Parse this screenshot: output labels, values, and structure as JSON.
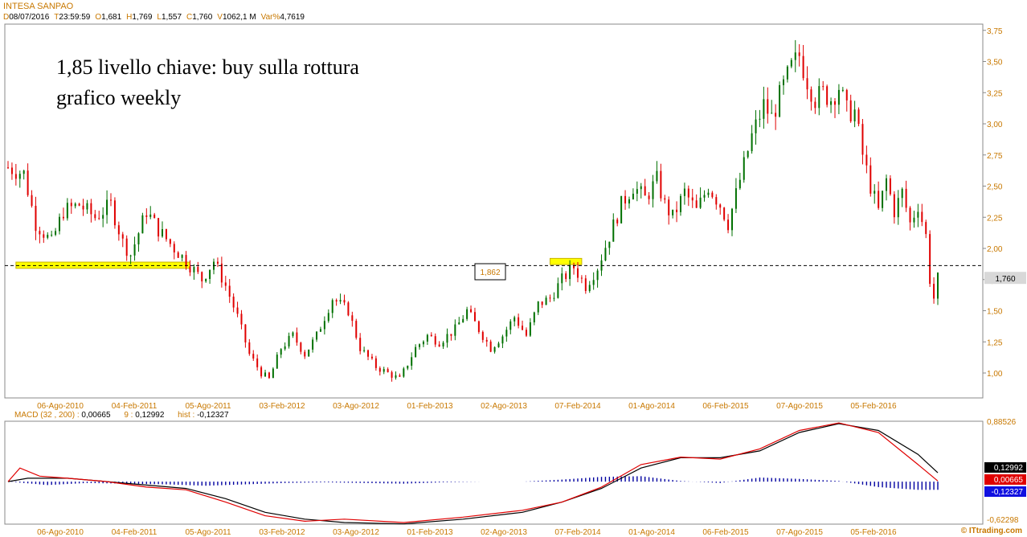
{
  "header": {
    "title": "INTESA SANPAO",
    "fields": [
      {
        "k": "D",
        "v": "08/07/2016"
      },
      {
        "k": "T",
        "v": "23:59:59"
      },
      {
        "k": "O",
        "v": "1,681"
      },
      {
        "k": "H",
        "v": "1,769"
      },
      {
        "k": "L",
        "v": "1,557"
      },
      {
        "k": "C",
        "v": "1,760"
      },
      {
        "k": "V",
        "v": "1062,1 M"
      },
      {
        "k": "Var%",
        "v": "4,7619"
      }
    ]
  },
  "annotations": {
    "line1": "1,85 livello chiave: buy sulla rottura",
    "line2": "grafico weekly",
    "box_label": "1,862",
    "last_price_label": "1,760"
  },
  "macd_header": {
    "name": "MACD",
    "params": "(32 , 200)",
    "macd_value": "0,00665",
    "signal_label": "9",
    "signal_value": "0,12992",
    "hist_label": "hist",
    "hist_value": "-0,12327"
  },
  "macd_labels": {
    "top": "0,88526",
    "bottom": "-0,62298",
    "signal_badge": "0,12992",
    "macd_badge": "0,00665",
    "hist_badge": "-0,12327"
  },
  "footer": "© ITtrading.com",
  "colors": {
    "up": "#007000",
    "down": "#e00000",
    "axis": "#c87800",
    "highlight": "#ffff00",
    "macd_line": "#e00000",
    "signal_line": "#000000",
    "hist": "#0000a0"
  },
  "chart_data": [
    {
      "type": "candlestick",
      "title": "",
      "y_ticks": [
        "3,75",
        "3,50",
        "3,25",
        "3,00",
        "2,75",
        "2,50",
        "2,25",
        "2,00",
        "1,75",
        "1,50",
        "1,25",
        "1,00"
      ],
      "y_tick_values": [
        3.75,
        3.5,
        3.25,
        3.0,
        2.75,
        2.5,
        2.25,
        2.0,
        1.75,
        1.5,
        1.25,
        1.0
      ],
      "ylim": [
        0.8,
        3.8
      ],
      "x_ticks": [
        "06-Ago-2010",
        "04-Feb-2011",
        "05-Ago-2011",
        "03-Feb-2012",
        "03-Ago-2012",
        "01-Feb-2013",
        "02-Ago-2013",
        "07-Feb-2014",
        "01-Ago-2014",
        "06-Feb-2015",
        "07-Ago-2015",
        "05-Feb-2016"
      ],
      "horizontal_line": 1.862,
      "last_close": 1.76,
      "close_path": [
        [
          0,
          2.65
        ],
        [
          4,
          2.6
        ],
        [
          7,
          2.2
        ],
        [
          11,
          2.05
        ],
        [
          14,
          2.3
        ],
        [
          18,
          2.35
        ],
        [
          22,
          2.25
        ],
        [
          26,
          2.35
        ],
        [
          29,
          2.05
        ],
        [
          31,
          1.95
        ],
        [
          35,
          2.3
        ],
        [
          38,
          2.15
        ],
        [
          42,
          2.0
        ],
        [
          45,
          1.9
        ],
        [
          49,
          1.75
        ],
        [
          52,
          1.9
        ],
        [
          55,
          1.7
        ],
        [
          58,
          1.45
        ],
        [
          61,
          1.15
        ],
        [
          64,
          1.0
        ],
        [
          66,
          0.95
        ],
        [
          69,
          1.2
        ],
        [
          72,
          1.3
        ],
        [
          75,
          1.15
        ],
        [
          78,
          1.3
        ],
        [
          82,
          1.6
        ],
        [
          86,
          1.5
        ],
        [
          89,
          1.2
        ],
        [
          93,
          1.05
        ],
        [
          96,
          1.0
        ],
        [
          99,
          0.95
        ],
        [
          103,
          1.2
        ],
        [
          106,
          1.3
        ],
        [
          109,
          1.25
        ],
        [
          113,
          1.35
        ],
        [
          116,
          1.5
        ],
        [
          119,
          1.35
        ],
        [
          122,
          1.2
        ],
        [
          125,
          1.3
        ],
        [
          128,
          1.45
        ],
        [
          131,
          1.3
        ],
        [
          134,
          1.55
        ],
        [
          137,
          1.6
        ],
        [
          140,
          1.75
        ],
        [
          143,
          1.85
        ],
        [
          146,
          1.7
        ],
        [
          149,
          1.85
        ],
        [
          152,
          2.1
        ],
        [
          155,
          2.35
        ],
        [
          158,
          2.5
        ],
        [
          161,
          2.4
        ],
        [
          164,
          2.55
        ],
        [
          166,
          2.35
        ],
        [
          168,
          2.25
        ],
        [
          171,
          2.45
        ],
        [
          174,
          2.3
        ],
        [
          177,
          2.5
        ],
        [
          180,
          2.35
        ],
        [
          182,
          2.2
        ],
        [
          185,
          2.55
        ],
        [
          188,
          2.9
        ],
        [
          191,
          3.15
        ],
        [
          193,
          3.05
        ],
        [
          196,
          3.3
        ],
        [
          198,
          3.45
        ],
        [
          200,
          3.55
        ],
        [
          202,
          3.35
        ],
        [
          204,
          3.2
        ],
        [
          206,
          3.25
        ],
        [
          208,
          3.2
        ],
        [
          210,
          3.3
        ],
        [
          212,
          3.1
        ],
        [
          214,
          3.1
        ],
        [
          216,
          2.75
        ],
        [
          218,
          2.5
        ],
        [
          220,
          2.3
        ],
        [
          222,
          2.55
        ],
        [
          224,
          2.3
        ],
        [
          226,
          2.45
        ],
        [
          228,
          2.2
        ],
        [
          230,
          2.35
        ],
        [
          232,
          2.1
        ],
        [
          233,
          1.75
        ],
        [
          234,
          1.6
        ],
        [
          235,
          1.76
        ]
      ],
      "highlights": [
        {
          "x_from": 2,
          "x_to": 46,
          "y_from": 1.84,
          "y_to": 1.89
        },
        {
          "x_from": 137,
          "x_to": 145,
          "y_from": 1.87,
          "y_to": 1.92
        }
      ]
    },
    {
      "type": "line",
      "title": "",
      "name": "MACD",
      "ylim": [
        -0.62298,
        0.88526
      ],
      "x_ticks": [
        "06-Ago-2010",
        "04-Feb-2011",
        "05-Ago-2011",
        "03-Feb-2012",
        "03-Ago-2012",
        "01-Feb-2013",
        "02-Ago-2013",
        "07-Feb-2014",
        "01-Ago-2014",
        "06-Feb-2015",
        "07-Ago-2015",
        "05-Feb-2016"
      ],
      "series": [
        {
          "name": "",
          "color": "#000000",
          "points": [
            [
              0,
              0.0
            ],
            [
              5,
              0.05
            ],
            [
              15,
              0.05
            ],
            [
              25,
              0.0
            ],
            [
              35,
              -0.05
            ],
            [
              45,
              -0.1
            ],
            [
              55,
              -0.25
            ],
            [
              65,
              -0.45
            ],
            [
              75,
              -0.55
            ],
            [
              85,
              -0.6
            ],
            [
              100,
              -0.62
            ],
            [
              115,
              -0.55
            ],
            [
              130,
              -0.45
            ],
            [
              140,
              -0.3
            ],
            [
              150,
              -0.1
            ],
            [
              160,
              0.2
            ],
            [
              170,
              0.35
            ],
            [
              180,
              0.35
            ],
            [
              190,
              0.45
            ],
            [
              200,
              0.72
            ],
            [
              210,
              0.85
            ],
            [
              220,
              0.75
            ],
            [
              230,
              0.4
            ],
            [
              235,
              0.13
            ]
          ]
        },
        {
          "name": "",
          "color": "#e00000",
          "points": [
            [
              0,
              0.0
            ],
            [
              3,
              0.2
            ],
            [
              8,
              0.08
            ],
            [
              15,
              0.05
            ],
            [
              25,
              0.0
            ],
            [
              35,
              -0.08
            ],
            [
              45,
              -0.12
            ],
            [
              55,
              -0.3
            ],
            [
              65,
              -0.5
            ],
            [
              75,
              -0.58
            ],
            [
              85,
              -0.55
            ],
            [
              100,
              -0.6
            ],
            [
              115,
              -0.52
            ],
            [
              130,
              -0.42
            ],
            [
              140,
              -0.3
            ],
            [
              150,
              -0.08
            ],
            [
              160,
              0.25
            ],
            [
              170,
              0.36
            ],
            [
              180,
              0.33
            ],
            [
              190,
              0.48
            ],
            [
              200,
              0.75
            ],
            [
              210,
              0.86
            ],
            [
              220,
              0.72
            ],
            [
              230,
              0.25
            ],
            [
              235,
              0.01
            ]
          ]
        }
      ],
      "histogram_points": [
        [
          0,
          0.0
        ],
        [
          10,
          -0.05
        ],
        [
          20,
          -0.02
        ],
        [
          30,
          -0.03
        ],
        [
          40,
          -0.04
        ],
        [
          50,
          -0.06
        ],
        [
          60,
          -0.04
        ],
        [
          70,
          -0.02
        ],
        [
          80,
          -0.01
        ],
        [
          90,
          -0.02
        ],
        [
          100,
          -0.03
        ],
        [
          110,
          -0.01
        ],
        [
          120,
          0.0
        ],
        [
          130,
          0.0
        ],
        [
          140,
          0.03
        ],
        [
          150,
          0.07
        ],
        [
          160,
          0.08
        ],
        [
          170,
          0.01
        ],
        [
          180,
          -0.02
        ],
        [
          190,
          0.06
        ],
        [
          200,
          0.04
        ],
        [
          210,
          0.01
        ],
        [
          220,
          -0.08
        ],
        [
          230,
          -0.12
        ],
        [
          235,
          -0.12
        ]
      ]
    }
  ]
}
